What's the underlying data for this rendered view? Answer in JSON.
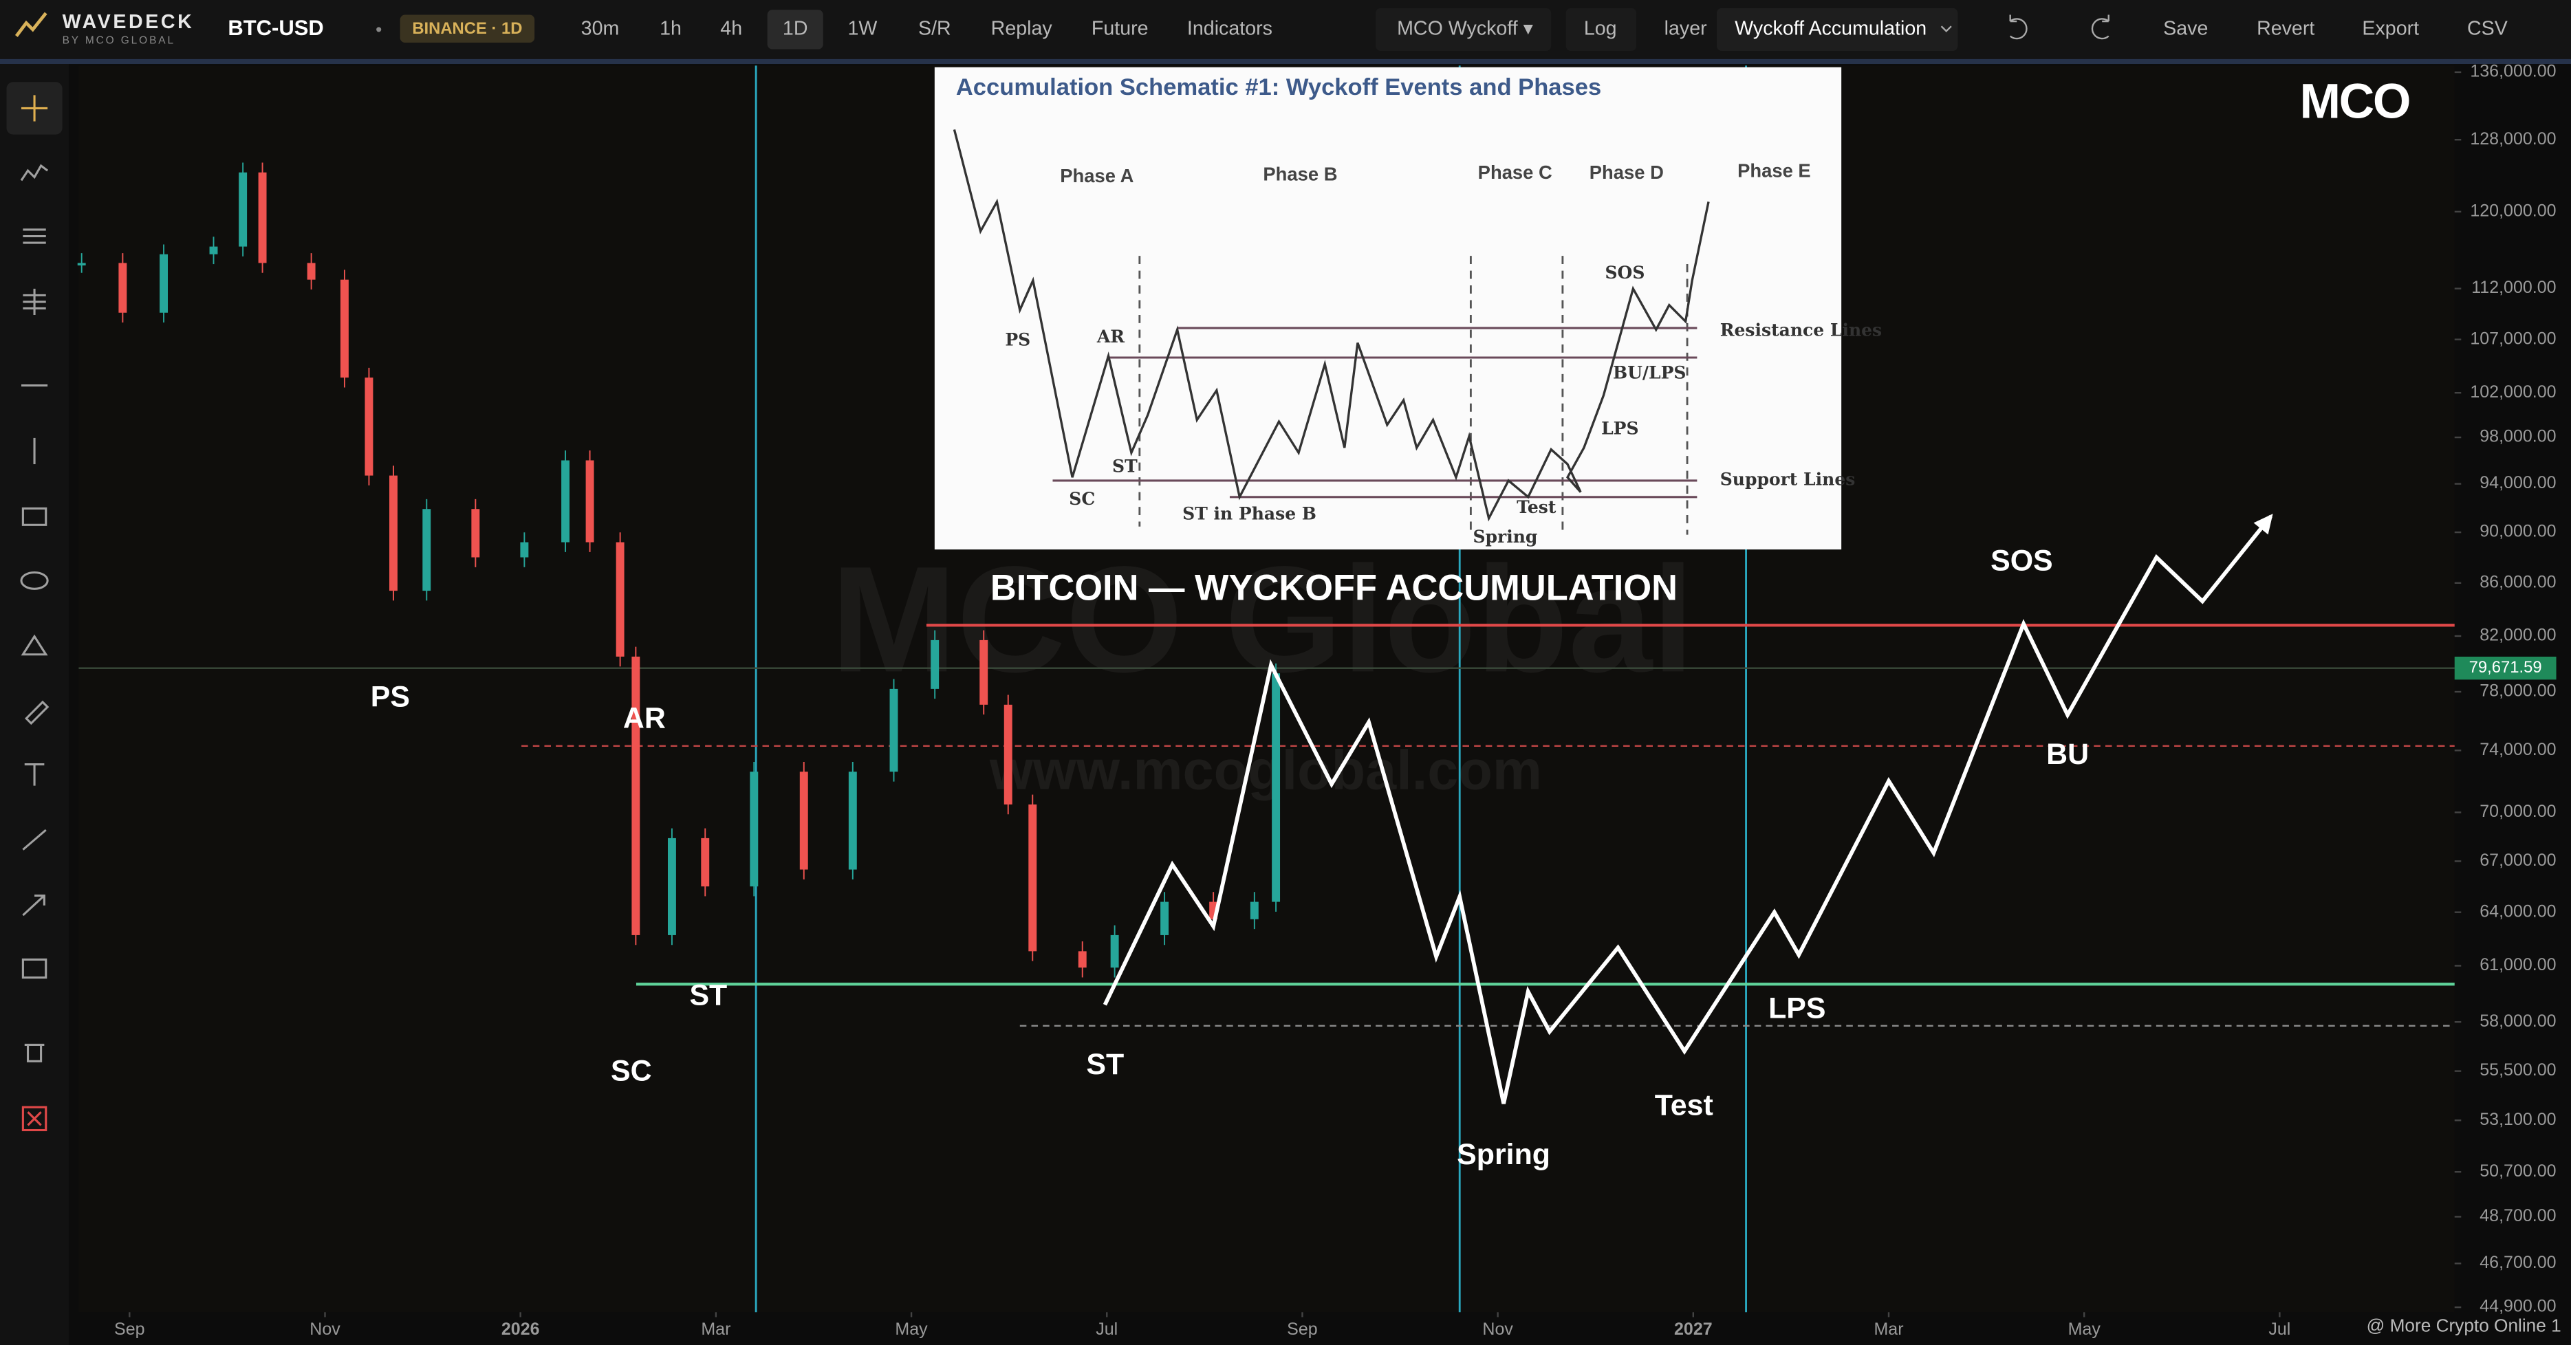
{
  "toolbar": {
    "brand": "WAVEDECK",
    "brand_sub": "BY MCO GLOBAL",
    "symbol": "BTC-USD",
    "exchange": "BINANCE · 1D",
    "intervals": [
      "30m",
      "1h",
      "4h",
      "1D",
      "1W"
    ],
    "buttons": [
      "S/R",
      "Replay",
      "Future",
      "Indicators"
    ],
    "template": "MCO Wyckoff ▾",
    "log": "Log",
    "layer_label": "layer",
    "layer": "Wyckoff Accumulation",
    "actions": [
      "Save",
      "Revert",
      "Export",
      "CSV"
    ]
  },
  "chart_data": {
    "type": "candlestick",
    "title": "BITCOIN — WYCKOFF ACCUMULATION",
    "log_scale": true,
    "xlim": [
      -0.52,
      23.79
    ],
    "xticks": [
      {
        "value": 0,
        "label": "Sep"
      },
      {
        "value": 2,
        "label": "Nov"
      },
      {
        "value": 4,
        "label": "2026"
      },
      {
        "value": 6,
        "label": "Mar"
      },
      {
        "value": 8,
        "label": "May"
      },
      {
        "value": 10,
        "label": "Jul"
      },
      {
        "value": 12,
        "label": "Sep"
      },
      {
        "value": 14,
        "label": "Nov"
      },
      {
        "value": 16,
        "label": "2027"
      },
      {
        "value": 18,
        "label": "Mar"
      },
      {
        "value": 20,
        "label": "May"
      },
      {
        "value": 22,
        "label": "Jul"
      }
    ],
    "ylim": [
      44900,
      136000
    ],
    "yticks": [
      {
        "value": 136000,
        "label": "136,000.00"
      },
      {
        "value": 128000,
        "label": "128,000.00"
      },
      {
        "value": 120000,
        "label": "120,000.00"
      },
      {
        "value": 112000,
        "label": "112,000.00"
      },
      {
        "value": 107000,
        "label": "107,000.00"
      },
      {
        "value": 102000,
        "label": "102,000.00"
      },
      {
        "value": 98000,
        "label": "98,000.00"
      },
      {
        "value": 94000,
        "label": "94,000.00"
      },
      {
        "value": 90000,
        "label": "90,000.00"
      },
      {
        "value": 86000,
        "label": "86,000.00"
      },
      {
        "value": 82000,
        "label": "82,000.00"
      },
      {
        "value": 78000,
        "label": "78,000.00"
      },
      {
        "value": 74000,
        "label": "74,000.00"
      },
      {
        "value": 70000,
        "label": "70,000.00"
      },
      {
        "value": 67000,
        "label": "67,000.00"
      },
      {
        "value": 64000,
        "label": "64,000.00"
      },
      {
        "value": 61000,
        "label": "61,000.00"
      },
      {
        "value": 58000,
        "label": "58,000.00"
      },
      {
        "value": 55500,
        "label": "55,500.00"
      },
      {
        "value": 53100,
        "label": "53,100.00"
      },
      {
        "value": 50700,
        "label": "50,700.00"
      },
      {
        "value": 48700,
        "label": "48,700.00"
      },
      {
        "value": 46700,
        "label": "46,700.00"
      },
      {
        "value": 44900,
        "label": "44,900.00"
      }
    ],
    "up_color": "#26a69a",
    "down_color": "#ef5350",
    "price": {
      "x": [
        -0.49,
        -0.07,
        0.35,
        0.86,
        1.16,
        1.36,
        1.86,
        2.2,
        2.45,
        2.7,
        3.04,
        3.54,
        4.04,
        4.46,
        4.71,
        5.02,
        5.18,
        5.55,
        5.89,
        6.39,
        6.9,
        7.4,
        7.82,
        8.24,
        8.74,
        8.99,
        9.24,
        9.75,
        10.08,
        10.59,
        11.09,
        11.51,
        11.73
      ],
      "values": [
        114600,
        109600,
        115500,
        116300,
        124300,
        114600,
        112900,
        103400,
        94700,
        85400,
        91900,
        88000,
        89200,
        96000,
        89200,
        80500,
        62700,
        68400,
        65500,
        72600,
        66500,
        72600,
        78200,
        81700,
        77100,
        70500,
        61800,
        60900,
        62700,
        64600,
        63600,
        64600,
        79300
      ]
    },
    "projection": {
      "color": "#ffffff",
      "x": [
        9.98,
        10.67,
        11.09,
        11.68,
        12.3,
        12.68,
        13.37,
        13.61,
        14.06,
        14.31,
        14.53,
        15.23,
        15.91,
        16.83,
        17.08,
        18.0,
        18.46,
        19.38,
        19.83,
        20.74,
        21.21,
        21.91
      ],
      "values": [
        58900,
        66800,
        63200,
        79900,
        71800,
        75900,
        61500,
        64900,
        53900,
        59600,
        57500,
        62000,
        56500,
        64000,
        61600,
        72000,
        67500,
        82900,
        76400,
        88000,
        84600,
        91300
      ]
    },
    "levels": [
      {
        "value": 82800,
        "color": "#e04848",
        "dashed": false
      },
      {
        "value": 74300,
        "color": "#c04545",
        "dashed": true
      },
      {
        "value": 60000,
        "color": "#5fd39a",
        "dashed": false
      },
      {
        "value": 57800,
        "color": "#8a8a8a",
        "dashed": true
      }
    ],
    "markers_x": [
      6.41,
      13.61,
      16.54
    ],
    "marker_color": "#2aa9c0",
    "last_price": {
      "value": 79671.59,
      "label": "79,671.59"
    },
    "annotations": [
      "PS",
      "AR",
      "SC",
      "ST",
      "ST",
      "Spring",
      "Test",
      "LPS",
      "SOS",
      "BU"
    ]
  },
  "schematic": {
    "title": "Accumulation Schematic #1: Wyckoff Events and Phases",
    "phases": [
      "Phase A",
      "Phase B",
      "Phase C",
      "Phase D",
      "Phase E"
    ],
    "events": [
      "PS",
      "AR",
      "SC",
      "ST",
      "ST in Phase B",
      "Spring",
      "Test",
      "SOS",
      "BU/LPS",
      "LPS"
    ],
    "resistance": "Resistance Lines",
    "support": "Support Lines"
  },
  "watermark": {
    "logo": "MCO",
    "name": "MCO Global",
    "url": "www.mcoglobal.com"
  },
  "footer": "@ More Crypto Online 1"
}
